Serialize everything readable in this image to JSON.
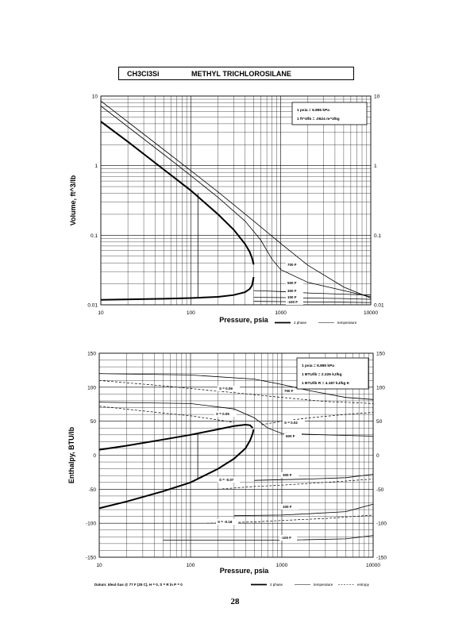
{
  "header": {
    "formula": "CH3Cl3Si",
    "name": "METHYL TRICHLOROSILANE"
  },
  "page_number": "28",
  "chart_data": [
    {
      "type": "line",
      "xlabel": "Pressure,  psia",
      "ylabel": "Volume, ft^3/lb",
      "x_scale": "log",
      "y_scale": "log",
      "xlim": [
        10,
        10000
      ],
      "ylim": [
        0.01,
        10
      ],
      "grid": true,
      "x_ticks": [
        "10",
        "100",
        "1000",
        "10000"
      ],
      "y_ticks_left": [
        "10",
        "1",
        "0.1",
        "0.01"
      ],
      "y_ticks_right": [
        "10",
        "1",
        "0.1",
        "0.01"
      ],
      "conversions": [
        "1 psia  =  6.895 kPa",
        "1 ft^3/lb  =  .0624 m^3/kg"
      ],
      "legend": [
        "2 phase",
        "temperature"
      ],
      "legend_position": "bottom-right",
      "curve_labels": [
        "700 F",
        "500 F",
        "300 F",
        "100 F",
        "-100 F"
      ],
      "series": [
        {
          "style": "2 phase",
          "role": "saturated vapor",
          "x": [
            10,
            20,
            50,
            100,
            200,
            300,
            400,
            450,
            480,
            500
          ],
          "y": [
            4.3,
            2.2,
            0.88,
            0.44,
            0.2,
            0.12,
            0.075,
            0.058,
            0.047,
            0.038
          ]
        },
        {
          "style": "2 phase",
          "role": "saturated liquid",
          "x": [
            10,
            50,
            100,
            200,
            300,
            400,
            450,
            480,
            500
          ],
          "y": [
            0.0118,
            0.0122,
            0.0125,
            0.013,
            0.0138,
            0.0152,
            0.0168,
            0.019,
            0.025
          ]
        },
        {
          "style": "2 phase",
          "role": "quality line at 120 psia",
          "x": [
            120,
            120
          ],
          "y": [
            0.0126,
            0.4
          ]
        },
        {
          "style": "temperature",
          "label": "700 F",
          "x": [
            10,
            50,
            100,
            200,
            500,
            1000,
            2000,
            5000,
            10000
          ],
          "y": [
            8.5,
            1.7,
            0.85,
            0.42,
            0.16,
            0.076,
            0.037,
            0.018,
            0.0125
          ]
        },
        {
          "style": "temperature",
          "label": "500 F",
          "x": [
            10,
            50,
            100,
            200,
            400,
            600,
            800,
            1000,
            2000,
            5000,
            10000
          ],
          "y": [
            7.2,
            1.45,
            0.72,
            0.35,
            0.16,
            0.085,
            0.045,
            0.032,
            0.021,
            0.016,
            0.013
          ]
        },
        {
          "style": "temperature",
          "label": "300 F",
          "x": [
            500,
            700,
            1000,
            2000,
            5000,
            10000
          ],
          "y": [
            0.016,
            0.0158,
            0.0155,
            0.0148,
            0.0142,
            0.0138
          ]
        },
        {
          "style": "temperature",
          "label": "100 F",
          "x": [
            500,
            1000,
            2000,
            5000,
            10000
          ],
          "y": [
            0.0128,
            0.0127,
            0.0125,
            0.0123,
            0.012
          ]
        },
        {
          "style": "temperature",
          "label": "-100 F",
          "x": [
            500,
            1000,
            2000,
            5000,
            10000
          ],
          "y": [
            0.0112,
            0.0111,
            0.011,
            0.0109,
            0.0108
          ]
        }
      ]
    },
    {
      "type": "line",
      "xlabel": "Pressure,  psia",
      "ylabel": "Enthalpy, BTU/lb",
      "x_scale": "log",
      "y_scale": "linear",
      "xlim": [
        10,
        10000
      ],
      "ylim": [
        -150,
        150
      ],
      "grid": true,
      "x_ticks": [
        "10",
        "100",
        "1000",
        "10000"
      ],
      "y_ticks_left": [
        "150",
        "100",
        "50",
        "0",
        "-50",
        "-100",
        "-150"
      ],
      "y_ticks_right": [
        "150",
        "100",
        "50",
        "0",
        "-50",
        "-100",
        "-150"
      ],
      "conversions": [
        "1 psia  =  6.895 kPa",
        "1 BTU/lb  =  2.326 kJ/kg",
        "1 BTU/lb R  =  4.187 kJ/kg K"
      ],
      "legend": [
        "2 phase",
        "temperature",
        "entropy"
      ],
      "legend_position": "bottom-right",
      "footnote": "Datum: Ideal Gas @ 77 F (25 C),  H = 0,  S = R ln P = 0",
      "curve_labels": [
        "700 F",
        "500 F",
        "300 F",
        "100 F",
        "-100 F"
      ],
      "entropy_labels": [
        "S = 0.09",
        "S = 0.05",
        "S = 0.02",
        "S = -0.07",
        "S = -0.18"
      ],
      "series": [
        {
          "style": "2 phase",
          "role": "saturated vapor",
          "x": [
            10,
            20,
            50,
            100,
            200,
            300,
            400,
            450,
            480
          ],
          "y": [
            8,
            14,
            23,
            30,
            38,
            43,
            45,
            44,
            40
          ]
        },
        {
          "style": "2 phase",
          "role": "saturated liquid",
          "x": [
            10,
            20,
            50,
            100,
            200,
            300,
            400,
            450,
            480,
            490
          ],
          "y": [
            -78,
            -68,
            -53,
            -40,
            -20,
            -5,
            10,
            22,
            32,
            38
          ]
        },
        {
          "style": "2 phase",
          "role": "quality line at 120 psia",
          "x": [
            120,
            120
          ],
          "y": [
            -36,
            32
          ]
        },
        {
          "style": "temperature",
          "label": "700 F",
          "x": [
            10,
            100,
            500,
            1000,
            2000,
            5000,
            10000
          ],
          "y": [
            120,
            118,
            112,
            104,
            95,
            85,
            82
          ]
        },
        {
          "style": "temperature",
          "label": "500 F",
          "x": [
            10,
            100,
            300,
            500,
            700,
            1000,
            3000,
            10000
          ],
          "y": [
            78,
            76,
            68,
            55,
            40,
            32,
            30,
            28
          ]
        },
        {
          "style": "temperature",
          "label": "300 F",
          "x": [
            500,
            1000,
            2000,
            5000,
            10000
          ],
          "y": [
            -37,
            -36,
            -35,
            -33,
            -28
          ]
        },
        {
          "style": "temperature",
          "label": "100 F",
          "x": [
            300,
            1000,
            2000,
            5000,
            10000
          ],
          "y": [
            -89,
            -88,
            -86,
            -83,
            -72
          ]
        },
        {
          "style": "temperature",
          "label": "-100 F",
          "x": [
            50,
            100,
            1000,
            5000,
            10000
          ],
          "y": [
            -125,
            -125,
            -125,
            -123,
            -118
          ]
        },
        {
          "style": "entropy",
          "label": "S = 0.09",
          "x": [
            10,
            50,
            100,
            300,
            1000,
            3000,
            10000
          ],
          "y": [
            110,
            102,
            98,
            92,
            85,
            79,
            76
          ]
        },
        {
          "style": "entropy",
          "label": "S = 0.05",
          "x": [
            10,
            50,
            100,
            200,
            300
          ],
          "y": [
            72,
            62,
            58,
            52,
            48
          ]
        },
        {
          "style": "entropy",
          "label": "S = 0.02",
          "x": [
            600,
            1000,
            2000,
            5000,
            10000
          ],
          "y": [
            45,
            50,
            55,
            60,
            63
          ]
        },
        {
          "style": "entropy",
          "label": "S = -0.07",
          "x": [
            200,
            500,
            1000,
            3000,
            10000
          ],
          "y": [
            -50,
            -46,
            -44,
            -40,
            -35
          ]
        },
        {
          "style": "entropy",
          "label": "S = -0.18",
          "x": [
            150,
            500,
            1000,
            3000,
            10000
          ],
          "y": [
            -100,
            -98,
            -96,
            -93,
            -88
          ]
        }
      ]
    }
  ]
}
